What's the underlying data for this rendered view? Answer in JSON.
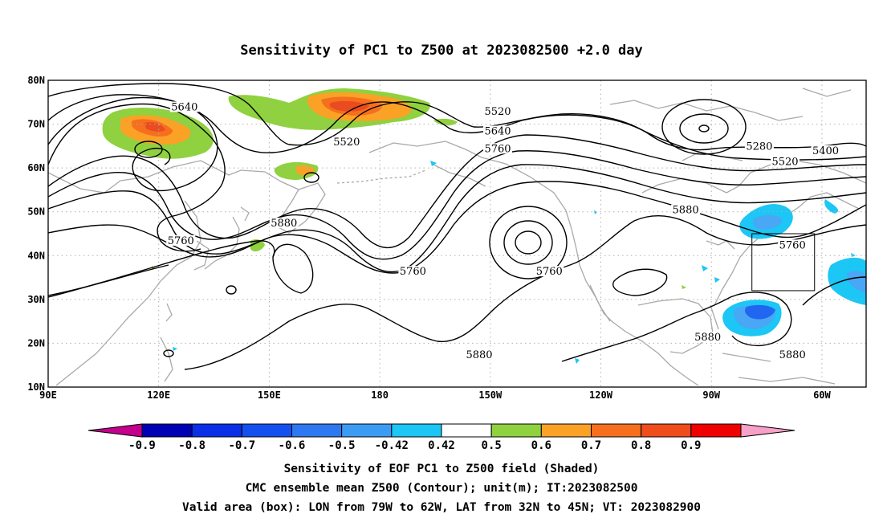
{
  "title": "Sensitivity of PC1 to Z500 at 2023082500 +2.0 day",
  "map": {
    "lat_ticks": [
      "80N",
      "70N",
      "60N",
      "50N",
      "40N",
      "30N",
      "20N",
      "10N"
    ],
    "lon_ticks": [
      "90E",
      "120E",
      "150E",
      "180",
      "150W",
      "120W",
      "90W",
      "60W"
    ],
    "lon_range": [
      90,
      312
    ],
    "lat_range": [
      10,
      80
    ],
    "contour_labels": [
      {
        "text": "5640",
        "lon": 127,
        "lat": 73.5
      },
      {
        "text": "5520",
        "lon": 212,
        "lat": 72.5
      },
      {
        "text": "5640",
        "lon": 212,
        "lat": 68
      },
      {
        "text": "5760",
        "lon": 212,
        "lat": 64
      },
      {
        "text": "5520",
        "lon": 171,
        "lat": 65.5
      },
      {
        "text": "5280",
        "lon": 283,
        "lat": 64.5
      },
      {
        "text": "5400",
        "lon": 301,
        "lat": 63.5
      },
      {
        "text": "5520",
        "lon": 290,
        "lat": 61
      },
      {
        "text": "5880",
        "lon": 263,
        "lat": 50
      },
      {
        "text": "5880",
        "lon": 154,
        "lat": 47
      },
      {
        "text": "5760",
        "lon": 126,
        "lat": 43
      },
      {
        "text": "5760",
        "lon": 189,
        "lat": 36
      },
      {
        "text": "5760",
        "lon": 226,
        "lat": 36
      },
      {
        "text": "5760",
        "lon": 292,
        "lat": 42
      },
      {
        "text": "5880",
        "lon": 207,
        "lat": 17
      },
      {
        "text": "5880",
        "lon": 269,
        "lat": 21
      },
      {
        "text": "5880",
        "lon": 292,
        "lat": 17
      }
    ],
    "shading_colors": {
      "green": "#8fd13f",
      "orange1": "#fba226",
      "orange2": "#f56f1e",
      "red": "#ea4b1f",
      "cyan": "#1cc6f5",
      "lightblue": "#49a7f5",
      "blue": "#2166f0"
    },
    "valid_box": {
      "lon_min": 281,
      "lon_max": 298,
      "lat_min": 32,
      "lat_max": 45
    }
  },
  "colorbar": {
    "colors": [
      "#c4008c",
      "#0000b4",
      "#0a2fe6",
      "#1450f0",
      "#2d78f0",
      "#3c9cf5",
      "#1cc6f5",
      "#ffffff",
      "#8fd13f",
      "#fba226",
      "#f56f1e",
      "#ef4d1b",
      "#f00000",
      "#f7a1c8"
    ],
    "labels": [
      "-0.9",
      "-0.8",
      "-0.7",
      "-0.6",
      "-0.5",
      "-0.42",
      "0.42",
      "0.5",
      "0.6",
      "0.7",
      "0.8",
      "0.9"
    ]
  },
  "footer": {
    "line1": "Sensitivity of EOF PC1 to Z500 field (Shaded)",
    "line2": "CMC ensemble mean Z500 (Contour); unit(m); IT:2023082500",
    "line3": "Valid area (box): LON from 79W to 62W, LAT from 32N to 45N; VT: 2023082900"
  }
}
